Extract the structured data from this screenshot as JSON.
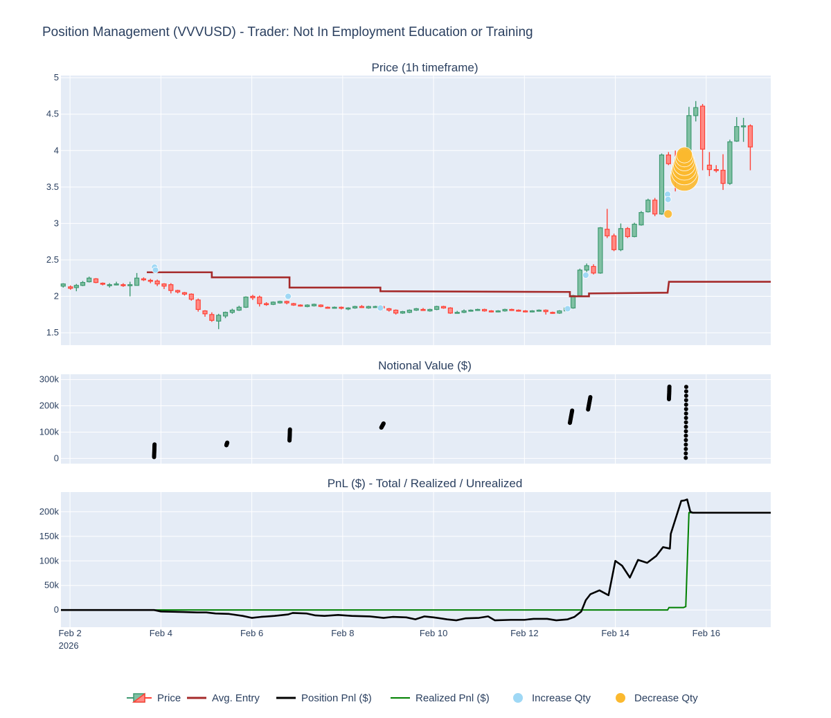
{
  "title": "Position Management (VVVUSD) - Trader: Not In Employment Education or Training",
  "colors": {
    "bg": "#e5ecf6",
    "grid": "#ffffff",
    "up": "#3d9970",
    "up_fill": "#80c0a3",
    "down": "#ff4136",
    "down_fill": "#ff8a84",
    "avg_entry": "#a52a2a",
    "position_pnl": "#000000",
    "realized_pnl": "#008000",
    "increase": "#9fd8f5",
    "decrease": "#fbb92f",
    "text": "#2a3f5f"
  },
  "legend": [
    {
      "key": "price",
      "label": "Price"
    },
    {
      "key": "avg_entry",
      "label": "Avg. Entry"
    },
    {
      "key": "position_pnl",
      "label": "Position Pnl ($)"
    },
    {
      "key": "realized_pnl",
      "label": "Realized Pnl ($)"
    },
    {
      "key": "increase",
      "label": "Increase Qty"
    },
    {
      "key": "decrease",
      "label": "Decrease Qty"
    }
  ],
  "chart_data": [
    {
      "type": "candlestick",
      "title": "Price (1h timeframe)",
      "x_range": [
        "2026-02-01T20:00",
        "2026-02-17T11:00"
      ],
      "ylim": [
        1.33,
        5.03
      ],
      "y_ticks": [
        "1.5",
        "2",
        "2.5",
        "3",
        "3.5",
        "4",
        "4.5",
        "5"
      ],
      "y_tick_values": [
        1.5,
        2,
        2.5,
        3,
        3.5,
        4,
        4.5,
        5
      ],
      "x_ticks": [
        "Feb 2\n2026",
        "Feb 4",
        "Feb 6",
        "Feb 8",
        "Feb 10",
        "Feb 12",
        "Feb 14",
        "Feb 16"
      ],
      "x_tick_values": [
        2,
        4,
        6,
        8,
        10,
        12,
        14,
        16
      ],
      "candles": [
        [
          1.85,
          2.14,
          2.17,
          2.12,
          2.18
        ],
        [
          2.01,
          2.13,
          2.11,
          2.09,
          2.15
        ],
        [
          2.14,
          2.12,
          2.15,
          2.07,
          2.17
        ],
        [
          2.28,
          2.15,
          2.19,
          2.14,
          2.21
        ],
        [
          2.42,
          2.2,
          2.25,
          2.19,
          2.27
        ],
        [
          2.57,
          2.24,
          2.19,
          2.18,
          2.25
        ],
        [
          2.72,
          2.18,
          2.17,
          2.15,
          2.19
        ],
        [
          2.87,
          2.16,
          2.16,
          2.12,
          2.18
        ],
        [
          3.02,
          2.17,
          2.17,
          2.15,
          2.2
        ],
        [
          3.17,
          2.16,
          2.15,
          2.13,
          2.18
        ],
        [
          3.32,
          2.16,
          2.16,
          2.0,
          2.2
        ],
        [
          3.47,
          2.15,
          2.25,
          2.15,
          2.32
        ],
        [
          3.62,
          2.24,
          2.23,
          2.21,
          2.26
        ],
        [
          3.77,
          2.22,
          2.21,
          2.18,
          2.24
        ],
        [
          3.92,
          2.21,
          2.17,
          2.14,
          2.23
        ],
        [
          4.07,
          2.17,
          2.14,
          2.1,
          2.18
        ],
        [
          4.22,
          2.16,
          2.08,
          2.04,
          2.18
        ],
        [
          4.37,
          2.08,
          2.06,
          2.04,
          2.09
        ],
        [
          4.52,
          2.05,
          2.03,
          2.01,
          2.06
        ],
        [
          4.67,
          2.03,
          1.96,
          1.94,
          2.04
        ],
        [
          4.82,
          1.95,
          1.82,
          1.79,
          1.97
        ],
        [
          4.97,
          1.8,
          1.76,
          1.72,
          1.81
        ],
        [
          5.12,
          1.75,
          1.67,
          1.65,
          1.78
        ],
        [
          5.27,
          1.66,
          1.74,
          1.55,
          1.76
        ],
        [
          5.42,
          1.73,
          1.78,
          1.7,
          1.79
        ],
        [
          5.57,
          1.78,
          1.81,
          1.76,
          1.83
        ],
        [
          5.72,
          1.81,
          1.85,
          1.8,
          1.87
        ],
        [
          5.87,
          1.85,
          1.99,
          1.84,
          2.0
        ],
        [
          6.02,
          2.0,
          1.98,
          1.95,
          2.02
        ],
        [
          6.17,
          1.99,
          1.9,
          1.86,
          2.01
        ],
        [
          6.32,
          1.9,
          1.89,
          1.87,
          1.92
        ],
        [
          6.47,
          1.89,
          1.92,
          1.88,
          1.93
        ],
        [
          6.62,
          1.91,
          1.93,
          1.9,
          1.94
        ],
        [
          6.77,
          1.93,
          1.91,
          1.89,
          1.94
        ],
        [
          6.92,
          1.9,
          1.88,
          1.87,
          1.91
        ],
        [
          7.07,
          1.88,
          1.87,
          1.86,
          1.89
        ],
        [
          7.22,
          1.86,
          1.88,
          1.85,
          1.89
        ],
        [
          7.37,
          1.87,
          1.89,
          1.86,
          1.9
        ],
        [
          7.52,
          1.88,
          1.86,
          1.85,
          1.89
        ],
        [
          7.67,
          1.85,
          1.84,
          1.83,
          1.86
        ],
        [
          7.82,
          1.84,
          1.85,
          1.83,
          1.86
        ],
        [
          7.97,
          1.85,
          1.84,
          1.82,
          1.86
        ],
        [
          8.12,
          1.83,
          1.84,
          1.81,
          1.85
        ],
        [
          8.27,
          1.84,
          1.86,
          1.83,
          1.87
        ],
        [
          8.42,
          1.86,
          1.85,
          1.84,
          1.88
        ],
        [
          8.57,
          1.84,
          1.86,
          1.83,
          1.87
        ],
        [
          8.72,
          1.86,
          1.86,
          1.85,
          1.87
        ],
        [
          8.87,
          1.86,
          1.84,
          1.8,
          1.87
        ],
        [
          9.02,
          1.83,
          1.81,
          1.79,
          1.84
        ],
        [
          9.17,
          1.81,
          1.77,
          1.75,
          1.82
        ],
        [
          9.32,
          1.77,
          1.79,
          1.76,
          1.8
        ],
        [
          9.47,
          1.78,
          1.81,
          1.77,
          1.82
        ],
        [
          9.62,
          1.81,
          1.83,
          1.8,
          1.84
        ],
        [
          9.77,
          1.82,
          1.81,
          1.8,
          1.84
        ],
        [
          9.92,
          1.8,
          1.82,
          1.79,
          1.83
        ],
        [
          10.07,
          1.82,
          1.86,
          1.81,
          1.87
        ],
        [
          10.22,
          1.86,
          1.84,
          1.83,
          1.87
        ],
        [
          10.37,
          1.84,
          1.77,
          1.76,
          1.85
        ],
        [
          10.52,
          1.78,
          1.78,
          1.77,
          1.8
        ],
        [
          10.67,
          1.78,
          1.8,
          1.77,
          1.82
        ],
        [
          10.82,
          1.8,
          1.81,
          1.79,
          1.82
        ],
        [
          10.97,
          1.81,
          1.82,
          1.8,
          1.83
        ],
        [
          11.12,
          1.82,
          1.8,
          1.79,
          1.83
        ],
        [
          11.27,
          1.8,
          1.79,
          1.78,
          1.81
        ],
        [
          11.42,
          1.79,
          1.8,
          1.78,
          1.81
        ],
        [
          11.57,
          1.8,
          1.82,
          1.79,
          1.83
        ],
        [
          11.72,
          1.82,
          1.81,
          1.8,
          1.83
        ],
        [
          11.87,
          1.81,
          1.8,
          1.79,
          1.82
        ],
        [
          12.02,
          1.8,
          1.79,
          1.78,
          1.81
        ],
        [
          12.17,
          1.79,
          1.8,
          1.78,
          1.81
        ],
        [
          12.32,
          1.8,
          1.81,
          1.79,
          1.82
        ],
        [
          12.47,
          1.81,
          1.79,
          1.75,
          1.82
        ],
        [
          12.62,
          1.78,
          1.77,
          1.76,
          1.79
        ],
        [
          12.77,
          1.77,
          1.8,
          1.76,
          1.81
        ],
        [
          12.92,
          1.8,
          1.84,
          1.79,
          1.85
        ],
        [
          13.07,
          1.84,
          2.01,
          1.83,
          2.02
        ],
        [
          13.22,
          2.01,
          2.36,
          2.0,
          2.38
        ],
        [
          13.37,
          2.36,
          2.42,
          2.31,
          2.45
        ],
        [
          13.52,
          2.41,
          2.32,
          2.3,
          2.44
        ],
        [
          13.67,
          2.32,
          2.94,
          2.31,
          2.95
        ],
        [
          13.82,
          2.92,
          2.83,
          2.8,
          3.2
        ],
        [
          13.97,
          2.83,
          2.64,
          2.62,
          2.86
        ],
        [
          14.12,
          2.64,
          2.93,
          2.62,
          3.0
        ],
        [
          14.27,
          2.93,
          2.82,
          2.8,
          2.95
        ],
        [
          14.42,
          2.82,
          2.99,
          2.81,
          3.01
        ],
        [
          14.57,
          2.98,
          3.15,
          2.97,
          3.17
        ],
        [
          14.72,
          3.16,
          3.32,
          3.15,
          3.34
        ],
        [
          14.87,
          3.32,
          3.13,
          3.1,
          3.35
        ],
        [
          15.02,
          3.13,
          3.94,
          3.12,
          3.96
        ],
        [
          15.17,
          3.94,
          3.82,
          3.8,
          3.98
        ],
        [
          15.32,
          3.82,
          3.71,
          3.44,
          4.0
        ],
        [
          15.47,
          3.72,
          3.99,
          3.7,
          4.01
        ],
        [
          15.62,
          3.99,
          4.48,
          3.98,
          4.6
        ],
        [
          15.77,
          4.48,
          4.59,
          4.4,
          4.68
        ],
        [
          15.92,
          4.61,
          4.02,
          3.73,
          4.64
        ],
        [
          16.07,
          3.8,
          3.74,
          3.65,
          3.98
        ],
        [
          16.22,
          3.74,
          3.73,
          3.7,
          3.8
        ],
        [
          16.37,
          3.73,
          3.55,
          3.46,
          3.95
        ],
        [
          16.52,
          3.55,
          4.12,
          3.53,
          4.15
        ],
        [
          16.67,
          4.13,
          4.33,
          4.12,
          4.46
        ],
        [
          16.82,
          4.33,
          4.34,
          4.12,
          4.45
        ],
        [
          16.97,
          4.34,
          4.05,
          3.73,
          4.36
        ]
      ],
      "avg_entry": [
        [
          3.69,
          2.33
        ],
        [
          5.12,
          2.33
        ],
        [
          5.12,
          2.26
        ],
        [
          6.83,
          2.26
        ],
        [
          6.83,
          2.12
        ],
        [
          8.83,
          2.12
        ],
        [
          8.83,
          2.07
        ],
        [
          13.0,
          2.06
        ],
        [
          13.0,
          2.0
        ],
        [
          13.42,
          2.0
        ],
        [
          13.42,
          2.04
        ],
        [
          15.15,
          2.05
        ],
        [
          15.18,
          2.2
        ],
        [
          17.42,
          2.2
        ]
      ],
      "increase_markers": [
        [
          3.86,
          2.4
        ],
        [
          3.88,
          2.36
        ],
        [
          6.8,
          2.0
        ],
        [
          8.83,
          1.84
        ],
        [
          12.95,
          1.83
        ],
        [
          13.35,
          2.29
        ],
        [
          15.15,
          3.4
        ],
        [
          15.16,
          3.33
        ]
      ],
      "decrease_markers": [
        [
          15.16,
          3.13
        ],
        [
          15.52,
          3.64
        ],
        [
          15.52,
          3.71
        ],
        [
          15.52,
          3.76
        ],
        [
          15.52,
          3.81
        ],
        [
          15.52,
          3.86
        ],
        [
          15.52,
          3.9
        ],
        [
          15.52,
          3.94
        ]
      ]
    },
    {
      "type": "scatter",
      "title": "Notional Value ($)",
      "ylim": [
        -20000,
        320000
      ],
      "y_ticks": [
        "0",
        "100k",
        "200k",
        "300k"
      ],
      "y_tick_values": [
        0,
        100000,
        200000,
        300000
      ],
      "clusters": [
        {
          "x": 3.85,
          "y0": 5000,
          "y1": 53000,
          "dx": 0.01
        },
        {
          "x": 5.44,
          "y0": 50000,
          "y1": 60000,
          "dx": 0.02
        },
        {
          "x": 6.83,
          "y0": 68000,
          "y1": 110000,
          "dx": 0.01
        },
        {
          "x": 8.85,
          "y0": 117000,
          "y1": 133000,
          "dx": 0.05
        },
        {
          "x": 13.0,
          "y0": 135000,
          "y1": 182000,
          "dx": 0.05
        },
        {
          "x": 13.4,
          "y0": 186000,
          "y1": 233000,
          "dx": 0.05
        },
        {
          "x": 15.18,
          "y0": 225000,
          "y1": 273000,
          "dx": 0.01
        },
        {
          "x": 15.55,
          "y0": 2000,
          "y1": 272000,
          "dx": 0.01
        }
      ]
    },
    {
      "type": "line",
      "title": "PnL ($) - Total / Realized / Unrealized",
      "ylim": [
        -35000,
        240000
      ],
      "y_ticks": [
        "0",
        "50k",
        "100k",
        "150k",
        "200k"
      ],
      "y_tick_values": [
        0,
        50000,
        100000,
        150000,
        200000
      ],
      "position_pnl": [
        [
          1.8,
          0
        ],
        [
          3.85,
          0
        ],
        [
          4.0,
          -3000
        ],
        [
          4.5,
          -4000
        ],
        [
          4.8,
          -5000
        ],
        [
          5.0,
          -5000
        ],
        [
          5.2,
          -7000
        ],
        [
          5.5,
          -8000
        ],
        [
          5.8,
          -12000
        ],
        [
          6.0,
          -16000
        ],
        [
          6.2,
          -14000
        ],
        [
          6.5,
          -12000
        ],
        [
          6.8,
          -9000
        ],
        [
          6.9,
          -6000
        ],
        [
          7.2,
          -7000
        ],
        [
          7.4,
          -11000
        ],
        [
          7.6,
          -12000
        ],
        [
          7.9,
          -10000
        ],
        [
          8.2,
          -12000
        ],
        [
          8.6,
          -13000
        ],
        [
          8.9,
          -16000
        ],
        [
          9.1,
          -14000
        ],
        [
          9.4,
          -15000
        ],
        [
          9.6,
          -19000
        ],
        [
          9.8,
          -13000
        ],
        [
          10.0,
          -15000
        ],
        [
          10.3,
          -19000
        ],
        [
          10.5,
          -21000
        ],
        [
          10.7,
          -17000
        ],
        [
          11.0,
          -16000
        ],
        [
          11.2,
          -13000
        ],
        [
          11.35,
          -21000
        ],
        [
          11.7,
          -20000
        ],
        [
          12.0,
          -20000
        ],
        [
          12.2,
          -18000
        ],
        [
          12.5,
          -18000
        ],
        [
          12.7,
          -21000
        ],
        [
          12.95,
          -19000
        ],
        [
          13.1,
          -14000
        ],
        [
          13.25,
          -3000
        ],
        [
          13.35,
          20000
        ],
        [
          13.45,
          32000
        ],
        [
          13.65,
          40000
        ],
        [
          13.85,
          30000
        ],
        [
          14.0,
          100000
        ],
        [
          14.15,
          90000
        ],
        [
          14.32,
          66000
        ],
        [
          14.5,
          102000
        ],
        [
          14.7,
          96000
        ],
        [
          14.9,
          110000
        ],
        [
          15.05,
          128000
        ],
        [
          15.2,
          125000
        ],
        [
          15.22,
          155000
        ],
        [
          15.45,
          222000
        ],
        [
          15.52,
          223000
        ],
        [
          15.58,
          225000
        ],
        [
          15.65,
          200000
        ],
        [
          15.7,
          198000
        ],
        [
          17.42,
          198000
        ]
      ],
      "realized_pnl": [
        [
          1.8,
          0
        ],
        [
          15.15,
          0
        ],
        [
          15.18,
          5000
        ],
        [
          15.5,
          5000
        ],
        [
          15.55,
          7000
        ],
        [
          15.62,
          198000
        ],
        [
          17.42,
          198000
        ]
      ]
    }
  ],
  "panels": {
    "price_title": "Price (1h timeframe)",
    "notional_title": "Notional Value ($)",
    "pnl_title": "PnL ($) - Total / Realized / Unrealized"
  }
}
